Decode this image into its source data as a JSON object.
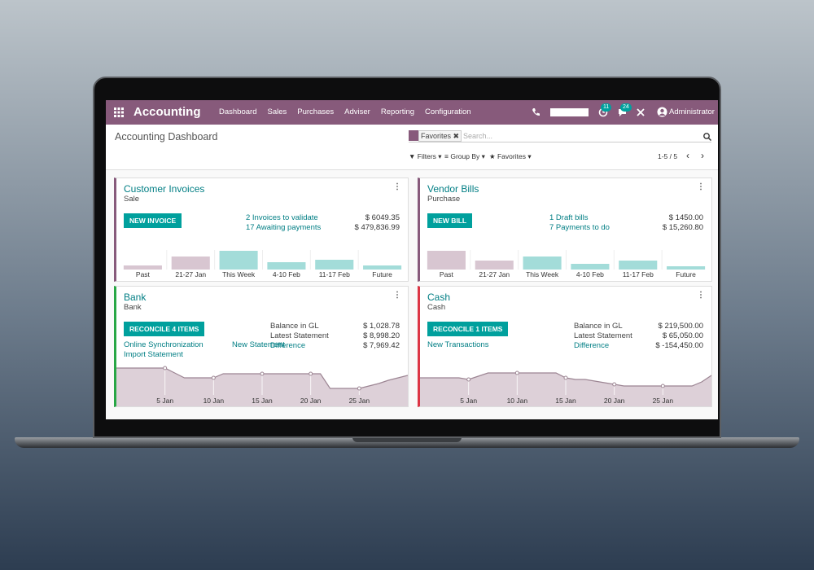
{
  "app": {
    "title": "Accounting",
    "menu": [
      "Dashboard",
      "Sales",
      "Purchases",
      "Adviser",
      "Reporting",
      "Configuration"
    ],
    "badges": [
      11,
      24
    ],
    "user": "Administrator"
  },
  "control_panel": {
    "breadcrumb": "Accounting Dashboard",
    "facet": "Favorites",
    "search_placeholder": "Search...",
    "filters": "Filters",
    "group_by": "Group By",
    "favorites": "Favorites",
    "pager": "1-5 / 5"
  },
  "journals": [
    {
      "name": "Customer Invoices",
      "type": "Sale",
      "accent": "#875a7b",
      "button": "NEW INVOICE",
      "actions": [],
      "lines": [
        {
          "label": "2 Invoices to validate",
          "amount": "$ 6049.35",
          "color": "#017e84"
        },
        {
          "label": "17 Awaiting payments",
          "amount": "$ 479,836.99",
          "color": "#017e84"
        }
      ],
      "chart": {
        "type": "bar",
        "categories": [
          "Past",
          "21-27 Jan",
          "This Week",
          "4-10 Feb",
          "11-17 Feb",
          "Future"
        ],
        "values": [
          5,
          16,
          23,
          9,
          12,
          5
        ],
        "colors": [
          "#d8c6d1",
          "#d8c6d1",
          "#a3dcd9",
          "#a3dcd9",
          "#a3dcd9",
          "#a3dcd9"
        ],
        "ylim": [
          0,
          30
        ]
      }
    },
    {
      "name": "Vendor Bills",
      "type": "Purchase",
      "accent": "#875a7b",
      "button": "NEW BILL",
      "actions": [],
      "lines": [
        {
          "label": "1 Draft bills",
          "amount": "$ 1450.00",
          "color": "#017e84"
        },
        {
          "label": "7 Payments to do",
          "amount": "$ 15,260.80",
          "color": "#017e84"
        }
      ],
      "chart": {
        "type": "bar",
        "categories": [
          "Past",
          "21-27 Jan",
          "This Week",
          "4-10 Feb",
          "11-17 Feb",
          "Future"
        ],
        "values": [
          23,
          11,
          16,
          7,
          11,
          4
        ],
        "colors": [
          "#d8c6d1",
          "#d8c6d1",
          "#a3dcd9",
          "#a3dcd9",
          "#a3dcd9",
          "#a3dcd9"
        ],
        "ylim": [
          0,
          30
        ]
      }
    },
    {
      "name": "Bank",
      "type": "Bank",
      "accent": "#28a745",
      "button": "RECONCILE 4 ITEMS",
      "actions": [
        [
          "Online Synchronization",
          "New Statement"
        ],
        [
          "Import Statement"
        ]
      ],
      "lines": [
        {
          "label": "Balance in GL",
          "amount": "$ 1,028.78",
          "color": "#444444"
        },
        {
          "label": "Latest Statement",
          "amount": "$ 8,998.20",
          "color": "#444444"
        },
        {
          "label": "Difference",
          "amount": "$ 7,969.42",
          "color": "#017e84"
        }
      ],
      "chart": {
        "type": "line",
        "categories": [
          null,
          null,
          null,
          null,
          null,
          "5 Jan",
          null,
          null,
          null,
          null,
          "10 Jan",
          null,
          null,
          null,
          null,
          "15 Jan",
          null,
          null,
          null,
          null,
          "20 Jan",
          null,
          null,
          null,
          null,
          "25 Jan",
          null,
          null,
          null,
          null,
          null
        ],
        "values": [
          47,
          47,
          47,
          47,
          47,
          47,
          41,
          35,
          35,
          35,
          35,
          40,
          40,
          40,
          40,
          40,
          40,
          40,
          40,
          40,
          40,
          40,
          22,
          22,
          22,
          22,
          25,
          28,
          32,
          35,
          38
        ],
        "ylim": [
          0,
          60
        ]
      }
    },
    {
      "name": "Cash",
      "type": "Cash",
      "accent": "#dc3545",
      "button": "RECONCILE 1 ITEMS",
      "actions": [
        [
          "New Transactions"
        ]
      ],
      "lines": [
        {
          "label": "Balance in GL",
          "amount": "$ 219,500.00",
          "color": "#444444"
        },
        {
          "label": "Latest Statement",
          "amount": "$ 65,050.00",
          "color": "#444444"
        },
        {
          "label": "Difference",
          "amount": "$ -154,450.00",
          "color": "#017e84"
        }
      ],
      "chart": {
        "type": "line",
        "categories": [
          null,
          null,
          null,
          null,
          null,
          "5 Jan",
          null,
          null,
          null,
          null,
          "10 Jan",
          null,
          null,
          null,
          null,
          "15 Jan",
          null,
          null,
          null,
          null,
          "20 Jan",
          null,
          null,
          null,
          null,
          "25 Jan",
          null,
          null,
          null,
          null,
          null
        ],
        "values": [
          35,
          35,
          35,
          35,
          35,
          33,
          37,
          41,
          41,
          41,
          41,
          41,
          41,
          41,
          41,
          35,
          33,
          33,
          31,
          29,
          27,
          25,
          25,
          25,
          25,
          25,
          25,
          25,
          25,
          30,
          38
        ],
        "ylim": [
          0,
          60
        ]
      }
    }
  ]
}
